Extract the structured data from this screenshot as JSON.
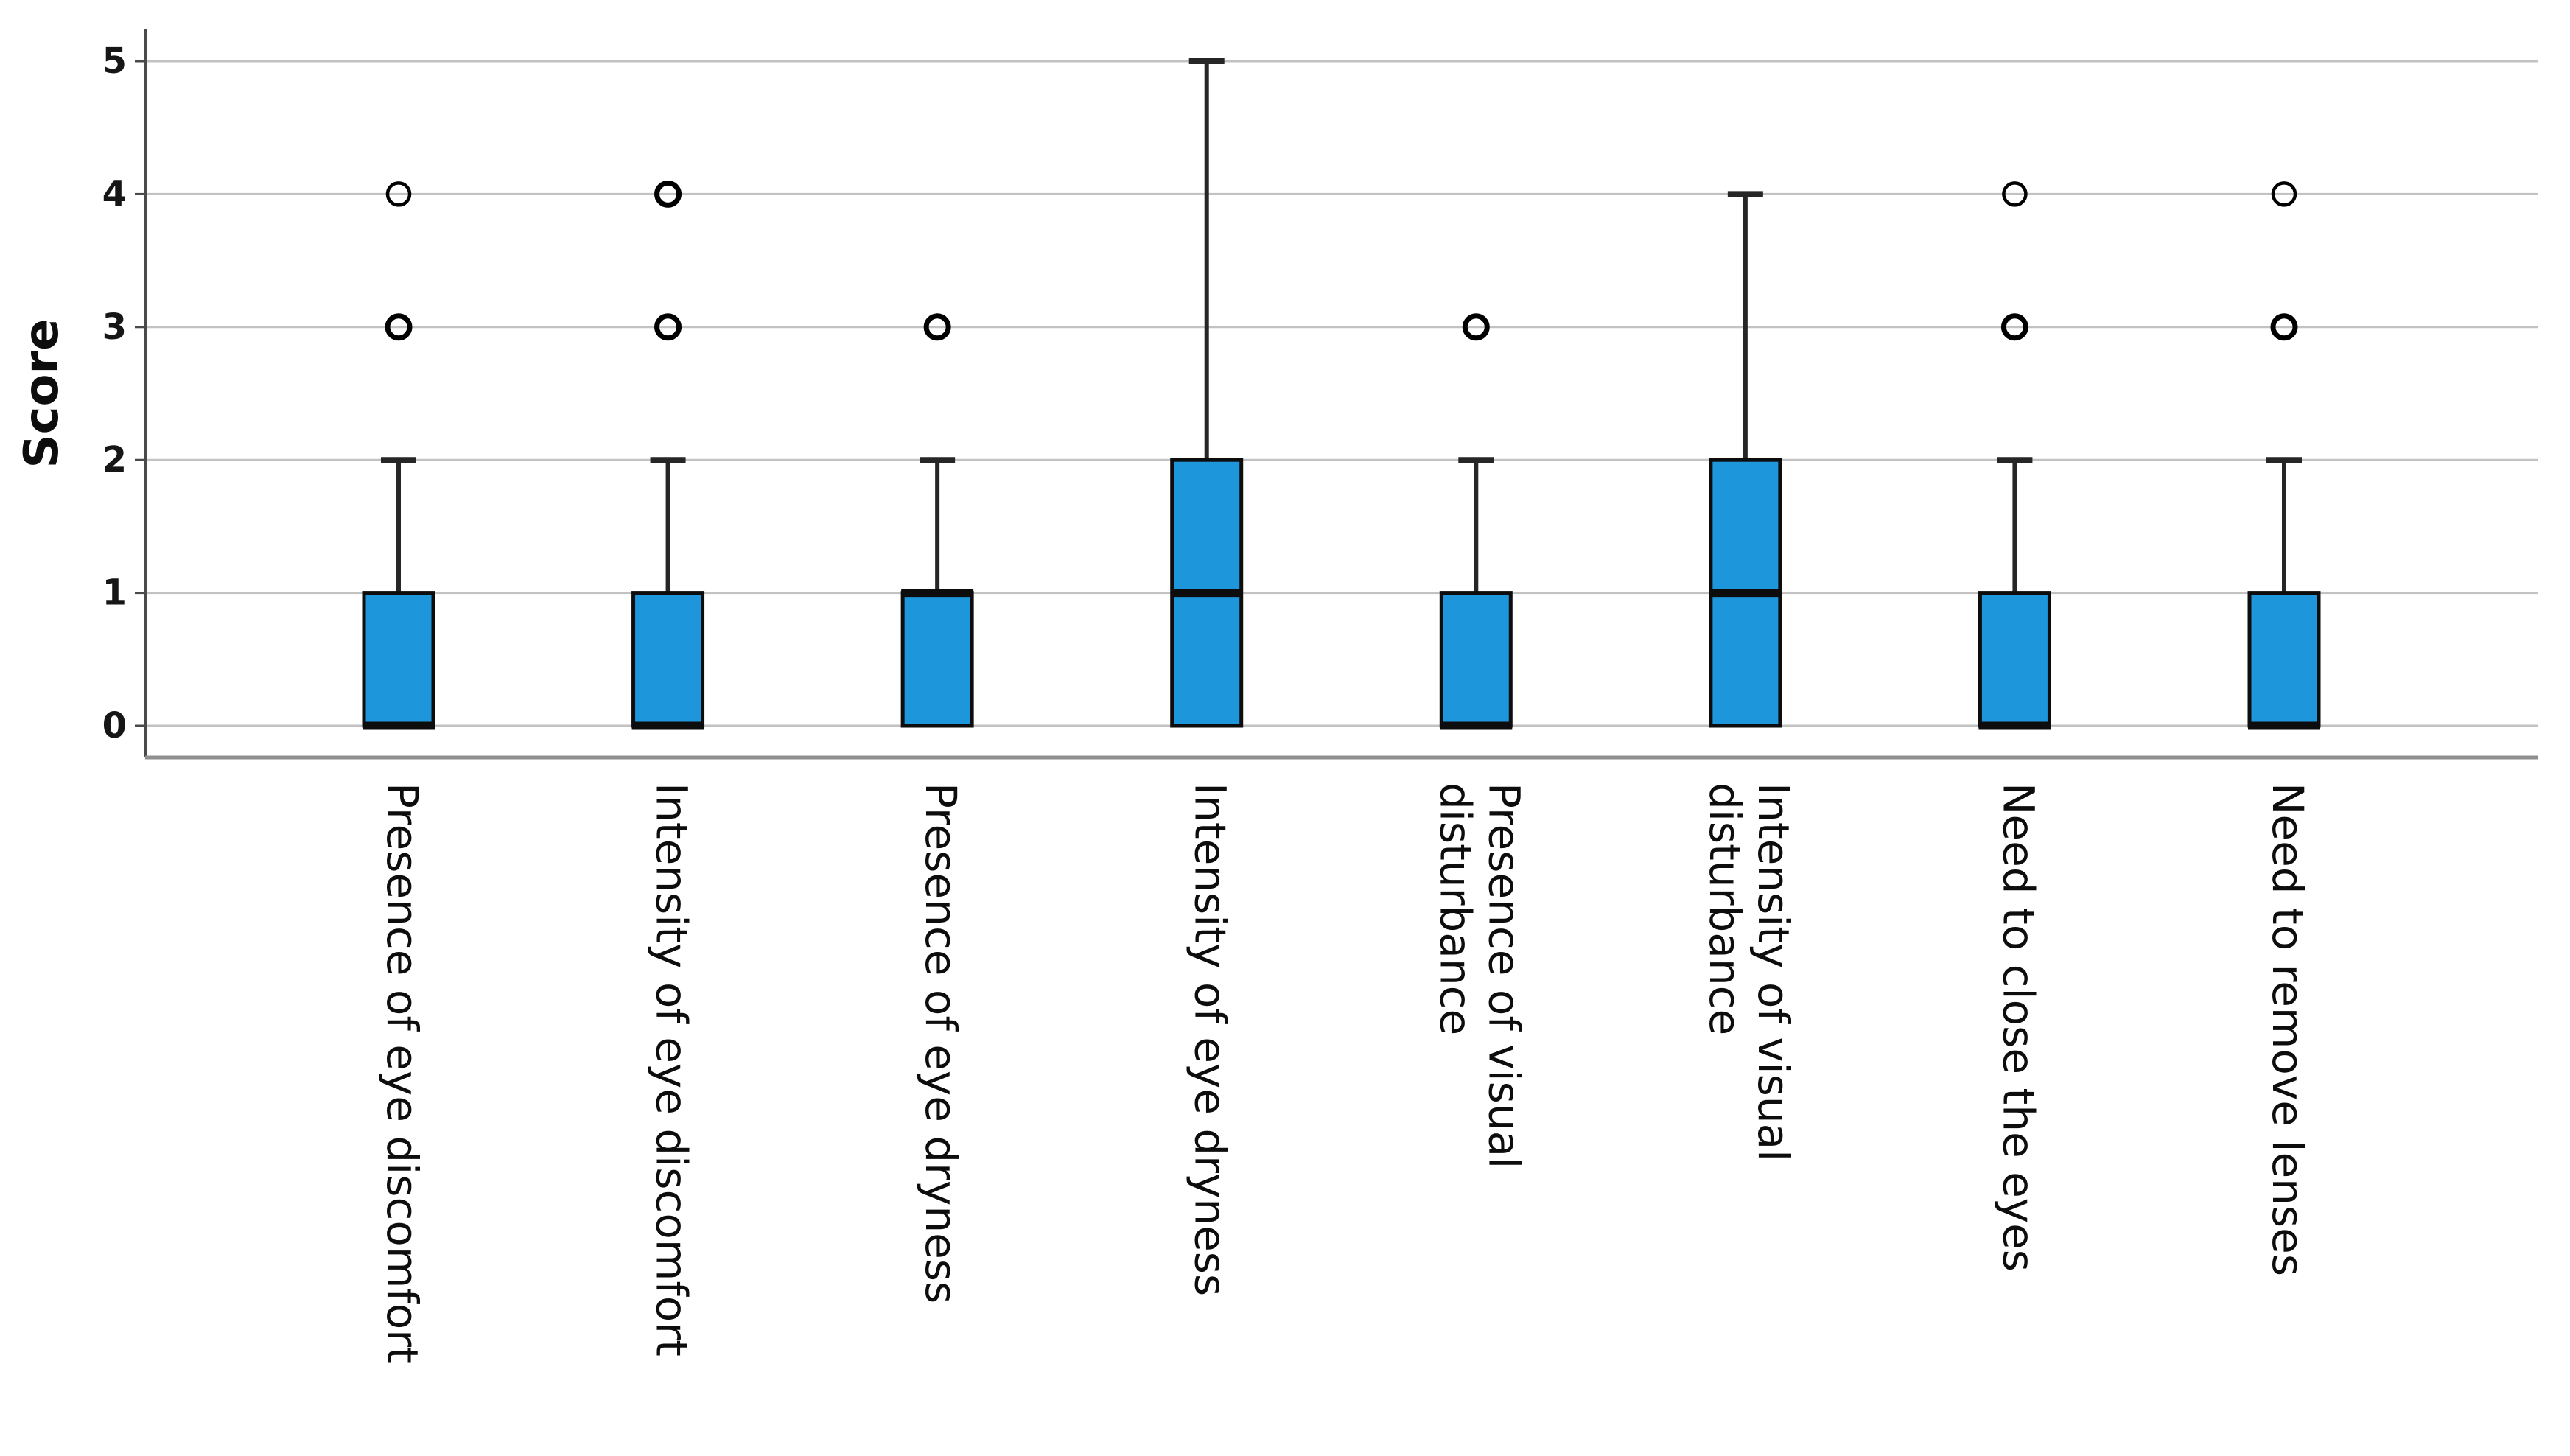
{
  "chart_data": {
    "type": "box",
    "title": "",
    "xlabel": "",
    "ylabel": "Score",
    "ylim": [
      0,
      5
    ],
    "yticks": [
      0,
      1,
      2,
      3,
      4,
      5
    ],
    "grid": "horizontal",
    "legend": "none",
    "box_fill": "#1d96db",
    "box_stroke": "#0d0d0d",
    "categories": [
      "Presence of eye discomfort",
      "Intensity of eye discomfort",
      "Presence of eye dryness",
      "Intensity of eye dryness",
      "Presence of visual disturbance",
      "Intensity of visual disturbance",
      "Need to close the eyes",
      "Need to remove lenses"
    ],
    "series": [
      {
        "label": "Presence of eye discomfort",
        "label_lines": [
          "Presence of eye discomfort"
        ],
        "q1": 0,
        "median": 0,
        "q3": 1,
        "whisker_low": 0,
        "whisker_high": 2,
        "outliers": [
          {
            "value": 3,
            "weight": "heavy"
          },
          {
            "value": 4,
            "weight": "light"
          }
        ]
      },
      {
        "label": "Intensity of eye discomfort",
        "label_lines": [
          "Intensity of eye discomfort"
        ],
        "q1": 0,
        "median": 0,
        "q3": 1,
        "whisker_low": 0,
        "whisker_high": 2,
        "outliers": [
          {
            "value": 3,
            "weight": "heavy"
          },
          {
            "value": 4,
            "weight": "heavy"
          }
        ]
      },
      {
        "label": "Presence of eye dryness",
        "label_lines": [
          "Presence of eye dryness"
        ],
        "q1": 0,
        "median": 1,
        "q3": 1,
        "whisker_low": 0,
        "whisker_high": 2,
        "outliers": [
          {
            "value": 3,
            "weight": "heavy"
          }
        ]
      },
      {
        "label": "Intensity of eye dryness",
        "label_lines": [
          "Intensity of eye dryness"
        ],
        "q1": 0,
        "median": 1,
        "q3": 2,
        "whisker_low": 0,
        "whisker_high": 5,
        "outliers": []
      },
      {
        "label": "Presence of visual disturbance",
        "label_lines": [
          "Presence of visual",
          "disturbance"
        ],
        "q1": 0,
        "median": 0,
        "q3": 1,
        "whisker_low": 0,
        "whisker_high": 2,
        "outliers": [
          {
            "value": 3,
            "weight": "heavy"
          }
        ]
      },
      {
        "label": "Intensity of visual disturbance",
        "label_lines": [
          "Intensity of visual",
          "disturbance"
        ],
        "q1": 0,
        "median": 1,
        "q3": 2,
        "whisker_low": 0,
        "whisker_high": 4,
        "outliers": []
      },
      {
        "label": "Need to close the eyes",
        "label_lines": [
          "Need to close the eyes"
        ],
        "q1": 0,
        "median": 0,
        "q3": 1,
        "whisker_low": 0,
        "whisker_high": 2,
        "outliers": [
          {
            "value": 3,
            "weight": "heavy"
          },
          {
            "value": 4,
            "weight": "light"
          }
        ]
      },
      {
        "label": "Need to remove lenses",
        "label_lines": [
          "Need to remove lenses"
        ],
        "q1": 0,
        "median": 0,
        "q3": 1,
        "whisker_low": 0,
        "whisker_high": 2,
        "outliers": [
          {
            "value": 3,
            "weight": "heavy"
          },
          {
            "value": 4,
            "weight": "light"
          }
        ]
      }
    ]
  }
}
